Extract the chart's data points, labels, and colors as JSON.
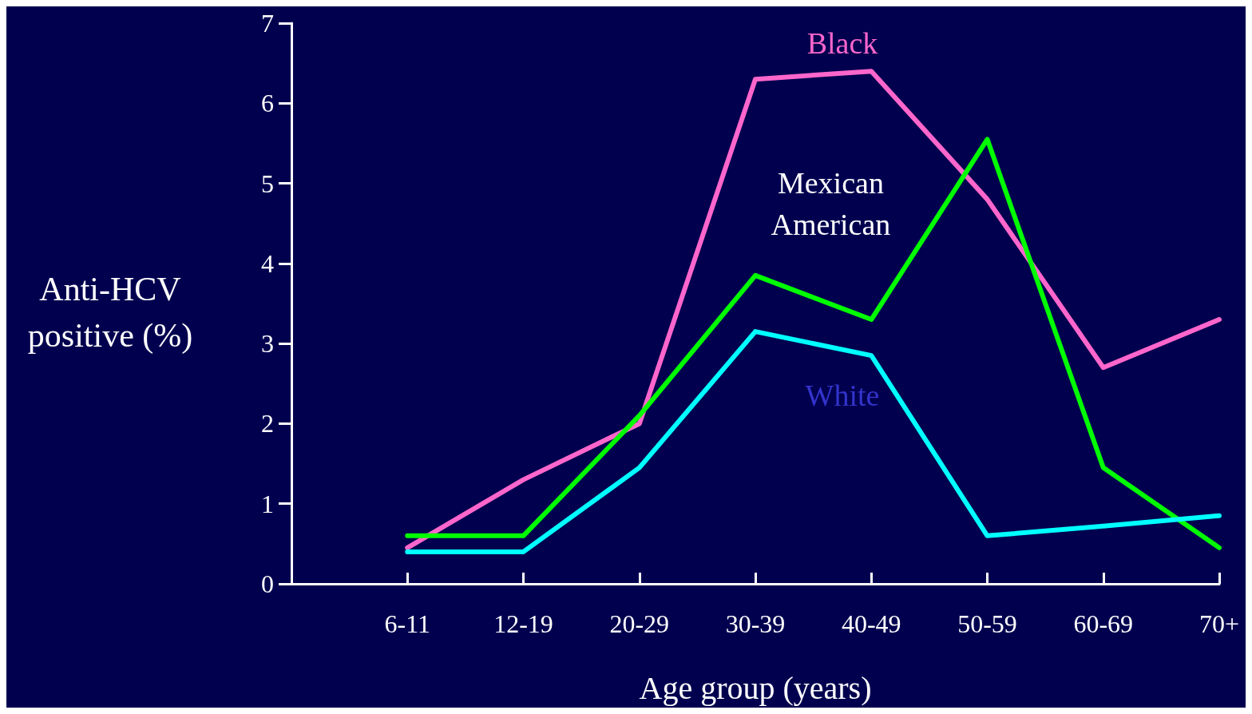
{
  "chart_data": {
    "type": "line",
    "xlabel": "Age group (years)",
    "ylabel": "Anti-HCV\npositive (%)",
    "categories": [
      "6-11",
      "12-19",
      "20-29",
      "30-39",
      "40-49",
      "50-59",
      "60-69",
      "70+"
    ],
    "ylim": [
      0,
      7
    ],
    "yticks": [
      0,
      1,
      2,
      3,
      4,
      5,
      6,
      7
    ],
    "grid": false,
    "legend": false,
    "marker": "none",
    "line_style": "solid",
    "series": [
      {
        "name": "Black",
        "color": "#ff66cc",
        "values": [
          0.45,
          1.3,
          2.0,
          6.3,
          6.4,
          4.8,
          2.7,
          3.3
        ]
      },
      {
        "name": "Mexican American",
        "color": "#00ff00",
        "values": [
          0.6,
          0.6,
          2.1,
          3.85,
          3.3,
          5.55,
          1.45,
          0.45
        ]
      },
      {
        "name": "White",
        "color": "#00ffff",
        "values": [
          0.4,
          0.4,
          1.45,
          3.15,
          2.85,
          0.6,
          0.72,
          0.85
        ]
      }
    ]
  }
}
